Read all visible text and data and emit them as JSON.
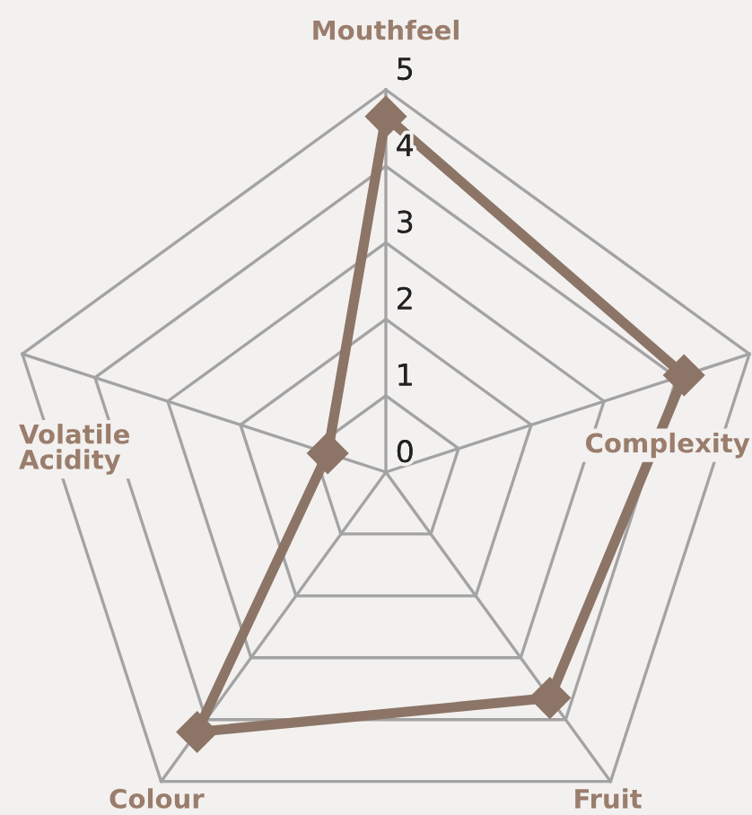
{
  "chart_data": {
    "type": "radar",
    "categories": [
      "Mouthfeel",
      "Complexity",
      "Fruit",
      "Colour",
      "Volatile\nAcidity"
    ],
    "series": [
      {
        "color": "#8c7567",
        "values": [
          4.65,
          4.1,
          3.65,
          4.2,
          0.8
        ]
      }
    ],
    "ylim": [
      0,
      5
    ],
    "yticks": [
      0,
      1,
      2,
      3,
      4,
      5
    ],
    "grid": true,
    "marker": "diamond",
    "line_style": "solid"
  }
}
